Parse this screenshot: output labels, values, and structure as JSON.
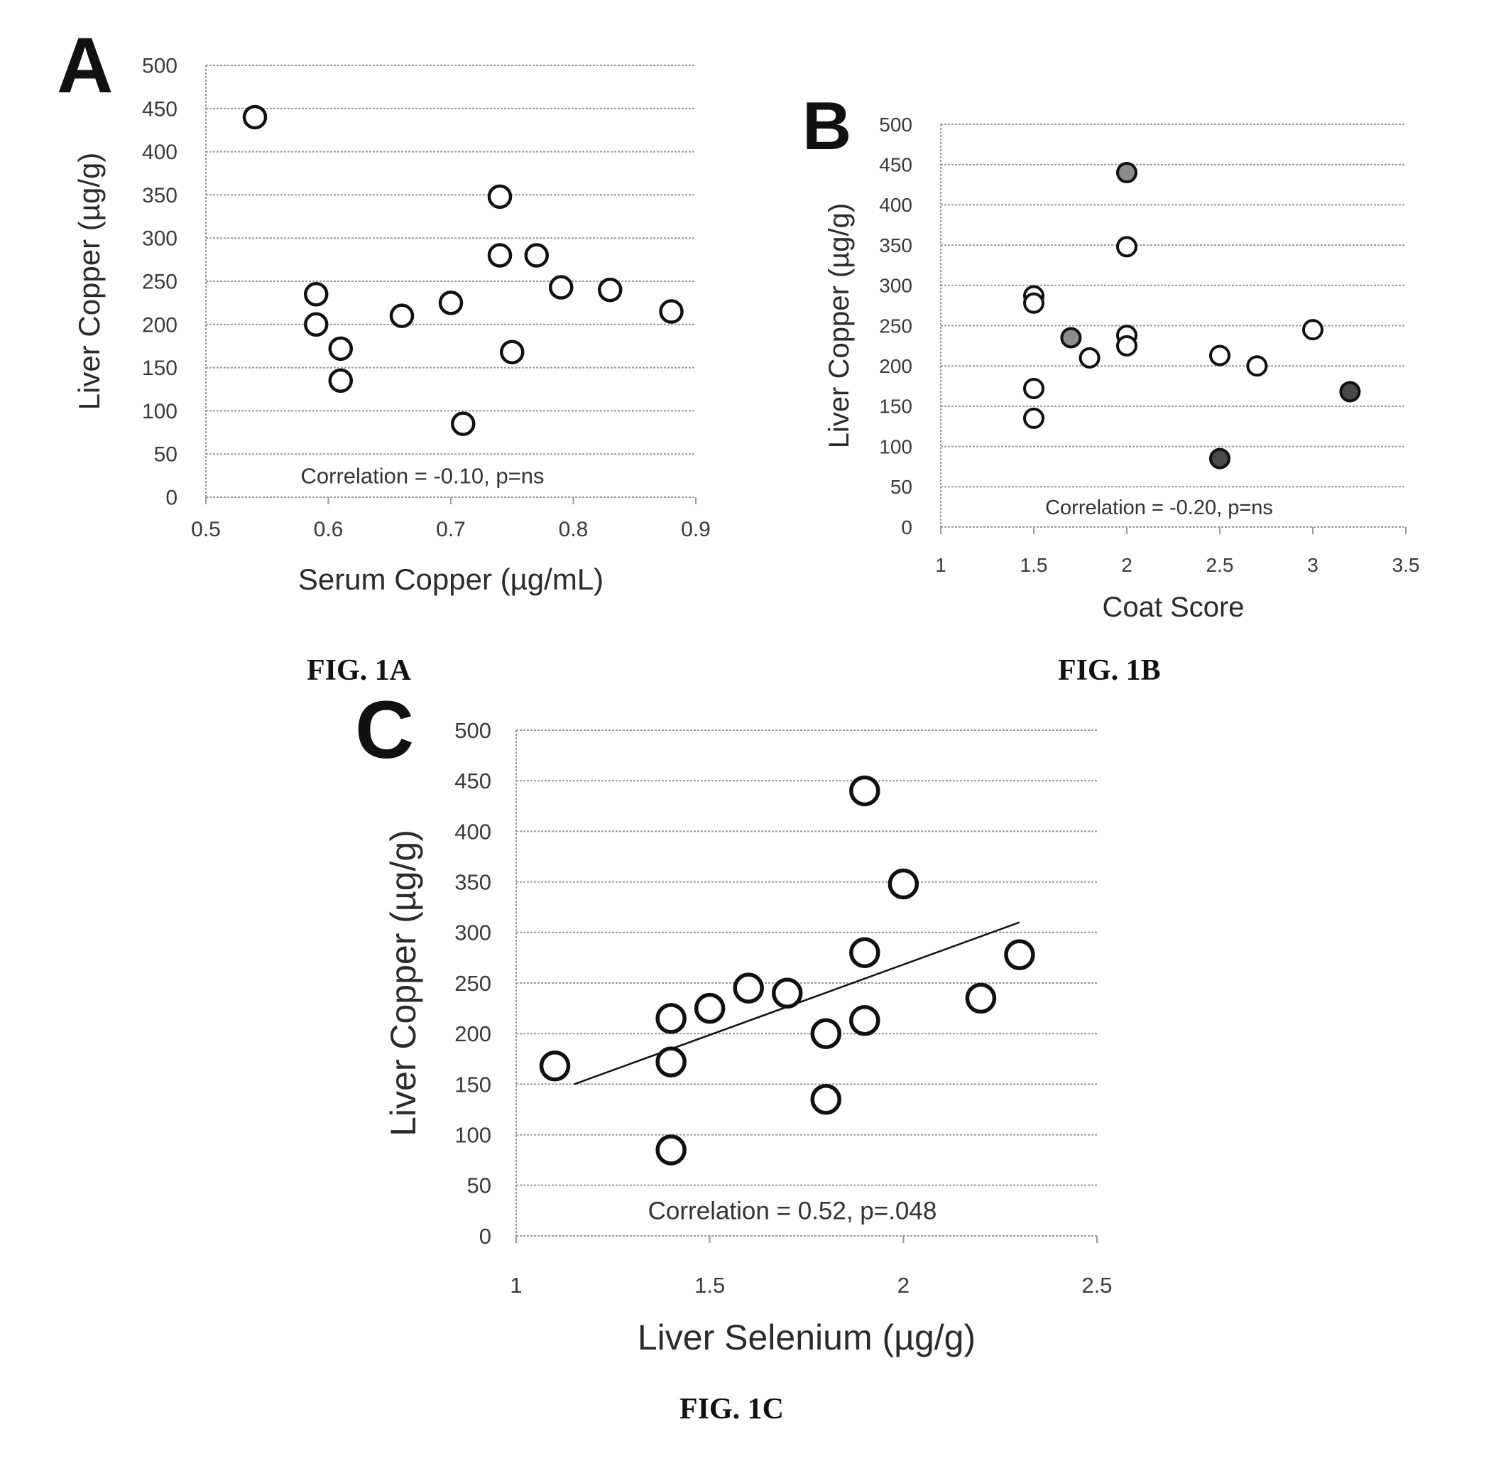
{
  "captions": {
    "a": "FIG. 1A",
    "b": "FIG. 1B",
    "c": "FIG. 1C"
  },
  "colors": {
    "marker_edge": "#111111",
    "grid": "#9a9a9a",
    "fill_gray": "#8c8c8c",
    "fill_dark": "#4a4a4a"
  },
  "chart_data": [
    {
      "panel": "A",
      "type": "scatter",
      "title": "",
      "xlabel": "Serum Copper (µg/mL)",
      "ylabel": "Liver Copper (µg/g)",
      "xlim": [
        0.5,
        0.9
      ],
      "ylim": [
        0,
        500
      ],
      "xticks": [
        "0.5",
        "0.6",
        "0.7",
        "0.8",
        "0.9"
      ],
      "yticks": [
        "0",
        "50",
        "100",
        "150",
        "200",
        "250",
        "300",
        "350",
        "400",
        "450",
        "500"
      ],
      "grid": "horizontal",
      "annotation": "Correlation = -0.10, p=ns",
      "points": [
        {
          "x": 0.54,
          "y": 440
        },
        {
          "x": 0.59,
          "y": 235
        },
        {
          "x": 0.59,
          "y": 200
        },
        {
          "x": 0.61,
          "y": 172
        },
        {
          "x": 0.61,
          "y": 135
        },
        {
          "x": 0.66,
          "y": 210
        },
        {
          "x": 0.7,
          "y": 225
        },
        {
          "x": 0.71,
          "y": 85
        },
        {
          "x": 0.74,
          "y": 348
        },
        {
          "x": 0.74,
          "y": 280
        },
        {
          "x": 0.75,
          "y": 168
        },
        {
          "x": 0.77,
          "y": 280
        },
        {
          "x": 0.79,
          "y": 243
        },
        {
          "x": 0.83,
          "y": 240
        },
        {
          "x": 0.88,
          "y": 215
        }
      ]
    },
    {
      "panel": "B",
      "type": "scatter",
      "title": "",
      "xlabel": "Coat Score",
      "ylabel": "Liver Copper (µg/g)",
      "xlim": [
        1,
        3.5
      ],
      "ylim": [
        0,
        500
      ],
      "xticks": [
        "1",
        "1.5",
        "2",
        "2.5",
        "3",
        "3.5"
      ],
      "yticks": [
        "0",
        "50",
        "100",
        "150",
        "200",
        "250",
        "300",
        "350",
        "400",
        "450",
        "500"
      ],
      "grid": "horizontal",
      "annotation": "Correlation = -0.20, p=ns",
      "points": [
        {
          "x": 1.5,
          "y": 287,
          "fill": "none"
        },
        {
          "x": 1.5,
          "y": 278,
          "fill": "none"
        },
        {
          "x": 1.5,
          "y": 172,
          "fill": "none"
        },
        {
          "x": 1.5,
          "y": 135,
          "fill": "none"
        },
        {
          "x": 1.7,
          "y": 235,
          "fill": "gray"
        },
        {
          "x": 1.8,
          "y": 210,
          "fill": "none"
        },
        {
          "x": 2.0,
          "y": 440,
          "fill": "gray"
        },
        {
          "x": 2.0,
          "y": 348,
          "fill": "none"
        },
        {
          "x": 2.0,
          "y": 238,
          "fill": "none"
        },
        {
          "x": 2.0,
          "y": 225,
          "fill": "none"
        },
        {
          "x": 2.5,
          "y": 213,
          "fill": "none"
        },
        {
          "x": 2.5,
          "y": 85,
          "fill": "dark"
        },
        {
          "x": 2.7,
          "y": 200,
          "fill": "none"
        },
        {
          "x": 3.0,
          "y": 245,
          "fill": "none"
        },
        {
          "x": 3.2,
          "y": 168,
          "fill": "dark"
        }
      ]
    },
    {
      "panel": "C",
      "type": "scatter",
      "title": "",
      "xlabel": "Liver Selenium (µg/g)",
      "ylabel": "Liver Copper (µg/g)",
      "xlim": [
        1,
        2.5
      ],
      "ylim": [
        0,
        500
      ],
      "xticks": [
        "1",
        "1.5",
        "2",
        "2.5"
      ],
      "yticks": [
        "0",
        "50",
        "100",
        "150",
        "200",
        "250",
        "300",
        "350",
        "400",
        "450",
        "500"
      ],
      "grid": "horizontal",
      "annotation": "Correlation = 0.52, p=.048",
      "trendline": {
        "x": [
          1.15,
          2.3
        ],
        "y": [
          150,
          310
        ]
      },
      "points": [
        {
          "x": 1.1,
          "y": 168
        },
        {
          "x": 1.4,
          "y": 215
        },
        {
          "x": 1.4,
          "y": 172
        },
        {
          "x": 1.4,
          "y": 85
        },
        {
          "x": 1.5,
          "y": 225
        },
        {
          "x": 1.6,
          "y": 245
        },
        {
          "x": 1.7,
          "y": 240
        },
        {
          "x": 1.8,
          "y": 200
        },
        {
          "x": 1.8,
          "y": 135
        },
        {
          "x": 1.9,
          "y": 440
        },
        {
          "x": 1.9,
          "y": 280
        },
        {
          "x": 1.9,
          "y": 213
        },
        {
          "x": 2.0,
          "y": 348
        },
        {
          "x": 2.2,
          "y": 235
        },
        {
          "x": 2.3,
          "y": 278
        }
      ]
    }
  ]
}
